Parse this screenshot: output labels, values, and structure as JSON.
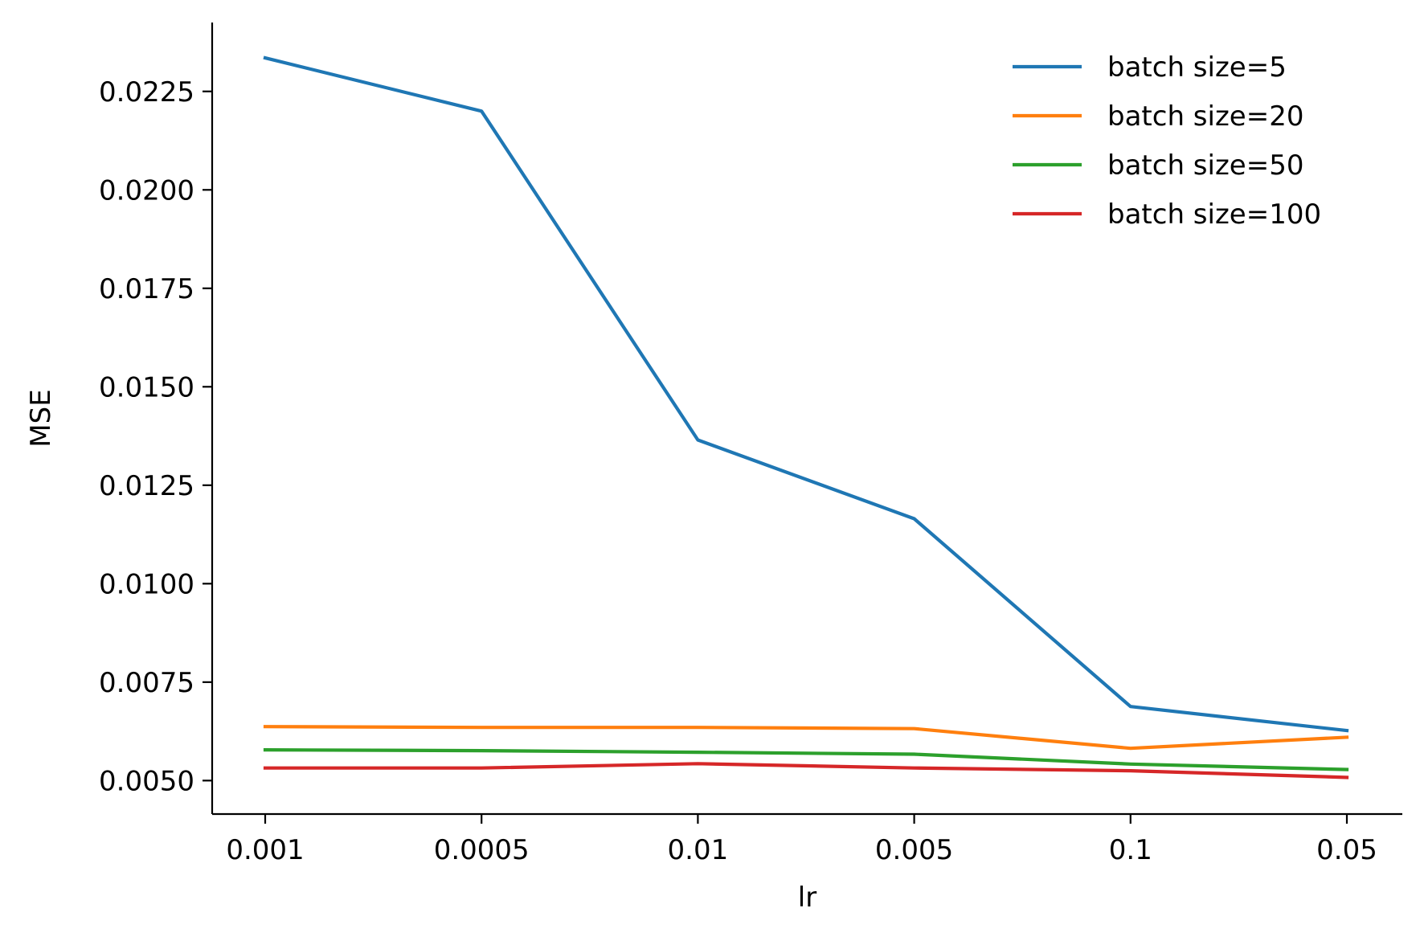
{
  "chart_data": {
    "type": "line",
    "title": "",
    "xlabel": "lr",
    "ylabel": "MSE",
    "categories": [
      "0.001",
      "0.0005",
      "0.01",
      "0.005",
      "0.1",
      "0.05"
    ],
    "ylim": [
      0.00415,
      0.02425
    ],
    "yticks": [
      0.005,
      0.0075,
      0.01,
      0.0125,
      0.015,
      0.0175,
      0.02,
      0.0225
    ],
    "ytick_labels": [
      "0.0050",
      "0.0075",
      "0.0100",
      "0.0125",
      "0.0150",
      "0.0175",
      "0.0200",
      "0.0225"
    ],
    "grid": false,
    "legend_position": "top-right",
    "series": [
      {
        "name": "batch size=5",
        "color": "#1f77b4",
        "values": [
          0.02335,
          0.022,
          0.01365,
          0.01165,
          0.00688,
          0.00627
        ]
      },
      {
        "name": "batch size=20",
        "color": "#ff7f0e",
        "values": [
          0.00637,
          0.00635,
          0.00635,
          0.00632,
          0.00582,
          0.0061
        ]
      },
      {
        "name": "batch size=50",
        "color": "#2ca02c",
        "values": [
          0.00578,
          0.00576,
          0.00572,
          0.00567,
          0.00542,
          0.00528
        ]
      },
      {
        "name": "batch size=100",
        "color": "#d62728",
        "values": [
          0.00532,
          0.00532,
          0.00543,
          0.00532,
          0.00525,
          0.00508
        ]
      }
    ]
  }
}
